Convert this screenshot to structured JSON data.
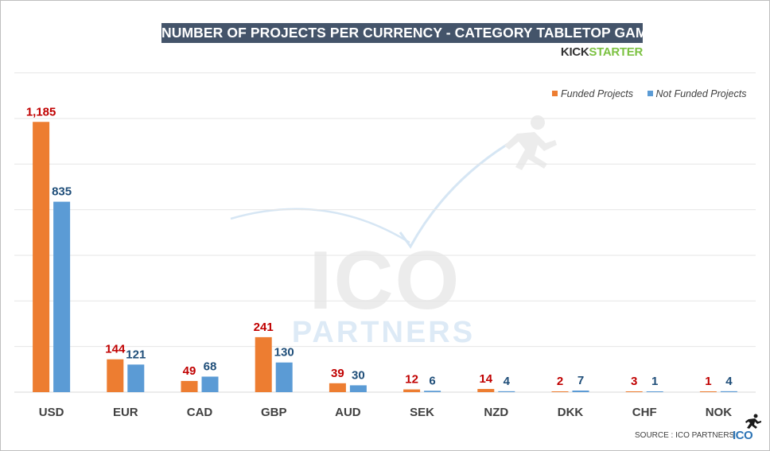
{
  "title": "NUMBER OF PROJECTS PER CURRENCY - CATEGORY TABLETOP GAMES",
  "brand": {
    "part1": "KICK",
    "part2": "STARTER"
  },
  "watermark": {
    "line1": "ICO",
    "line2": "PARTNERS"
  },
  "source": "SOURCE : ICO PARTNERS",
  "footer_logo": "ICO",
  "colors": {
    "funded": "#ed7d31",
    "not_funded": "#5b9bd5",
    "funded_label": "#c00000",
    "not_funded_label": "#1f4e79",
    "gridline": "#e6e6e6",
    "title_bg": "#44546a"
  },
  "chart_data": {
    "type": "bar",
    "title": "NUMBER OF PROJECTS PER CURRENCY - CATEGORY TABLETOP GAMES",
    "categories": [
      "USD",
      "EUR",
      "CAD",
      "GBP",
      "AUD",
      "SEK",
      "NZD",
      "DKK",
      "CHF",
      "NOK"
    ],
    "series": [
      {
        "name": "Funded Projects",
        "values": [
          1185,
          144,
          49,
          241,
          39,
          12,
          14,
          2,
          3,
          1
        ],
        "labels": [
          "1,185",
          "144",
          "49",
          "241",
          "39",
          "12",
          "14",
          "2",
          "3",
          "1"
        ]
      },
      {
        "name": "Not Funded Projects",
        "values": [
          835,
          121,
          68,
          130,
          30,
          6,
          4,
          7,
          1,
          4
        ],
        "labels": [
          "835",
          "121",
          "68",
          "130",
          "30",
          "6",
          "4",
          "7",
          "1",
          "4"
        ]
      }
    ],
    "ylim": [
      0,
      1400
    ],
    "gridline_step": 200,
    "grid": true,
    "legend": "top-right",
    "xlabel": "",
    "ylabel": ""
  }
}
